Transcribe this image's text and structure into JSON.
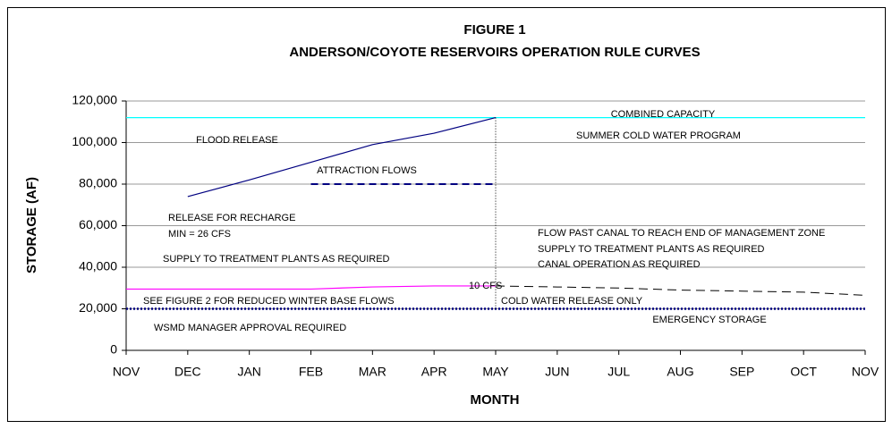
{
  "chart_data": {
    "type": "line",
    "title": "FIGURE 1",
    "subtitle": "ANDERSON/COYOTE RESERVOIRS OPERATION RULE CURVES",
    "x_label": "MONTH",
    "y_label": "STORAGE (AF)",
    "categories": [
      "NOV",
      "DEC",
      "JAN",
      "FEB",
      "MAR",
      "APR",
      "MAY",
      "JUN",
      "JUL",
      "AUG",
      "SEP",
      "OCT",
      "NOV"
    ],
    "ylim": [
      0,
      120000
    ],
    "yticks": [
      0,
      {
        "value": 20000,
        "label": "20,000"
      },
      {
        "value": 40000,
        "label": "40,000"
      },
      {
        "value": 60000,
        "label": "60,000"
      },
      {
        "value": 80000,
        "label": "80,000"
      },
      {
        "value": 100000,
        "label": "100,000"
      },
      {
        "value": 120000,
        "label": "120,000"
      }
    ],
    "grid": true,
    "series": [
      {
        "color": "#00ffff",
        "style": "solid",
        "values": [
          112000,
          112000,
          112000,
          112000,
          112000,
          112000,
          112000,
          112000,
          112000,
          112000,
          112000,
          112000,
          112000
        ]
      },
      {
        "color": "#000080",
        "style": "solid",
        "values": [
          null,
          74000,
          82000,
          90500,
          99000,
          104500,
          112000,
          null,
          null,
          null,
          null,
          null,
          null
        ]
      },
      {
        "color": "#000080",
        "style": "dashed",
        "values": [
          null,
          null,
          null,
          80000,
          80000,
          80000,
          80000,
          null,
          null,
          null,
          null,
          null,
          null
        ]
      },
      {
        "color": "#ff00ff",
        "style": "solid",
        "values": [
          29500,
          29500,
          29500,
          29500,
          30500,
          31000,
          31000,
          null,
          null,
          null,
          null,
          null,
          null
        ]
      },
      {
        "color": "#000000",
        "style": "longdash",
        "values": [
          null,
          null,
          null,
          null,
          null,
          null,
          31000,
          30500,
          30000,
          29000,
          28500,
          28000,
          26500
        ]
      },
      {
        "color": "#000080",
        "style": "dotted",
        "values": [
          20000,
          20000,
          20000,
          20000,
          20000,
          20000,
          20000,
          20000,
          20000,
          20000,
          20000,
          20000,
          20000
        ]
      }
    ],
    "annotations": [
      "COMBINED CAPACITY",
      "SUMMER COLD WATER PROGRAM",
      "FLOOD RELEASE",
      "ATTRACTION FLOWS",
      "RELEASE FOR RECHARGE",
      "MIN = 26 CFS",
      "SUPPLY TO TREATMENT PLANTS AS REQUIRED",
      "FLOW PAST CANAL TO REACH END OF MANAGEMENT ZONE",
      "SUPPLY TO TREATMENT PLANTS AS REQUIRED",
      "CANAL OPERATION AS REQUIRED",
      "10 CFS",
      "SEE FIGURE 2 FOR REDUCED WINTER BASE FLOWS",
      "COLD WATER RELEASE ONLY",
      "EMERGENCY STORAGE",
      "WSMD MANAGER APPROVAL REQUIRED"
    ]
  }
}
